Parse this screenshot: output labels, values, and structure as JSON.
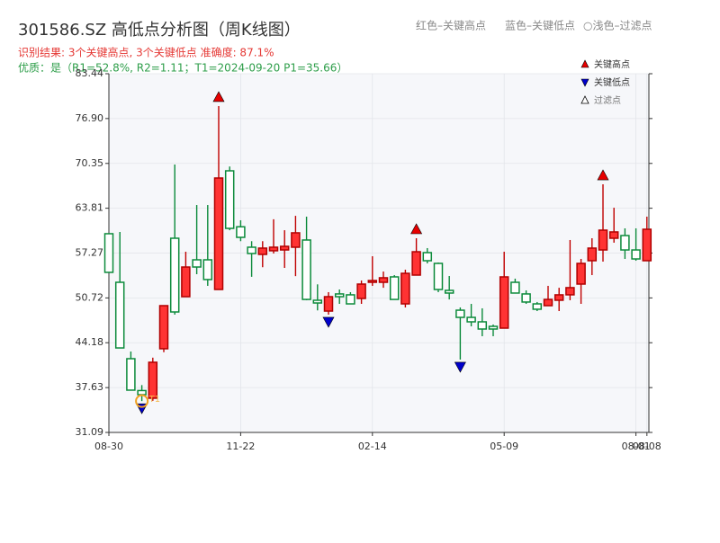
{
  "chart_data": {
    "type": "candlestick",
    "title": "301586.SZ 高低点分析图（周K线图）",
    "legend_top": [
      "红色–关键高点",
      "蓝色–关键低点",
      "○浅色–过滤点"
    ],
    "subtitle": "识别结果: 3个关键高点, 3个关键低点  准确度: 87.1%",
    "quality": "优质：是（R1=52.8%, R2=1.11；T1=2024-09-20 P1=35.66）",
    "legend": [
      "关键高点",
      "关键低点",
      "过滤点"
    ],
    "annotation": "T1",
    "categories": [
      "08-30",
      null,
      null,
      null,
      null,
      null,
      null,
      null,
      null,
      null,
      null,
      null,
      "11-22",
      null,
      null,
      null,
      null,
      null,
      null,
      null,
      null,
      null,
      null,
      null,
      "02-14",
      null,
      null,
      null,
      null,
      null,
      null,
      null,
      null,
      null,
      null,
      null,
      "05-09",
      null,
      null,
      null,
      null,
      null,
      null,
      null,
      null,
      null,
      null,
      null,
      "08-01",
      "08-08"
    ],
    "open": [
      60.09,
      53.0,
      41.85,
      37.2,
      36.08,
      43.3,
      59.43,
      50.9,
      56.28,
      56.28,
      51.95,
      69.27,
      61.1,
      58.12,
      57.07,
      57.6,
      57.72,
      58.12,
      59.17,
      50.38,
      48.8,
      51.3,
      51.17,
      50.64,
      53.0,
      53.0,
      53.79,
      49.85,
      54.05,
      57.33,
      55.76,
      51.82,
      48.93,
      47.88,
      47.23,
      46.57,
      46.31,
      53.0,
      51.3,
      49.85,
      49.59,
      50.38,
      51.17,
      52.74,
      56.15,
      57.72,
      59.43,
      59.82,
      57.72,
      56.15
    ],
    "high": [
      60.1,
      60.35,
      42.9,
      38.0,
      42.0,
      49.6,
      70.19,
      57.46,
      64.28,
      64.28,
      78.72,
      69.9,
      62.05,
      59.0,
      59.0,
      62.2,
      60.6,
      62.7,
      62.58,
      52.7,
      51.56,
      51.95,
      51.56,
      53.26,
      56.8,
      54.57,
      54.05,
      54.84,
      59.43,
      57.99,
      55.89,
      53.92,
      49.33,
      49.85,
      49.2,
      46.84,
      57.46,
      53.53,
      51.82,
      50.12,
      52.48,
      52.2,
      59.17,
      56.41,
      59.43,
      67.3,
      63.88,
      60.87,
      60.87,
      62.58
    ],
    "low": [
      54.4,
      43.4,
      37.2,
      35.66,
      35.7,
      42.8,
      48.28,
      50.9,
      54.18,
      52.48,
      51.9,
      60.6,
      59.0,
      53.8,
      55.2,
      57.2,
      55.1,
      53.9,
      50.38,
      48.9,
      48.28,
      49.85,
      49.85,
      49.85,
      52.48,
      52.2,
      50.5,
      49.33,
      54.05,
      55.76,
      51.56,
      50.5,
      41.72,
      46.57,
      45.13,
      45.13,
      46.31,
      51.43,
      49.85,
      48.8,
      49.59,
      48.8,
      50.38,
      49.85,
      54.05,
      56.02,
      58.78,
      56.41,
      56.15,
      56.15
    ],
    "close": [
      54.45,
      43.42,
      37.26,
      36.6,
      41.33,
      49.59,
      48.67,
      55.23,
      55.23,
      53.4,
      68.22,
      60.87,
      59.56,
      57.2,
      57.99,
      58.12,
      58.25,
      60.22,
      50.5,
      49.98,
      50.9,
      50.9,
      49.85,
      52.74,
      53.26,
      53.66,
      50.5,
      54.31,
      57.46,
      56.15,
      51.95,
      51.43,
      47.88,
      47.23,
      46.18,
      46.18,
      53.79,
      51.43,
      50.12,
      49.07,
      50.5,
      51.17,
      52.22,
      55.76,
      57.99,
      60.61,
      60.35,
      57.72,
      56.41,
      60.74
    ],
    "key_highs": [
      10,
      28,
      45
    ],
    "key_lows": [
      3,
      20,
      32
    ],
    "up_color": "#ff3333",
    "down_color": "#0b8a3a",
    "high_color": "#e60000",
    "low_color": "#0000cc",
    "ylim": [
      31.09,
      83.44
    ],
    "yticks": [
      31.09,
      37.63,
      44.18,
      50.72,
      57.27,
      63.81,
      70.35,
      {
        "value": 76.9,
        "label": "76.90"
      },
      83.44
    ],
    "grid": true
  }
}
